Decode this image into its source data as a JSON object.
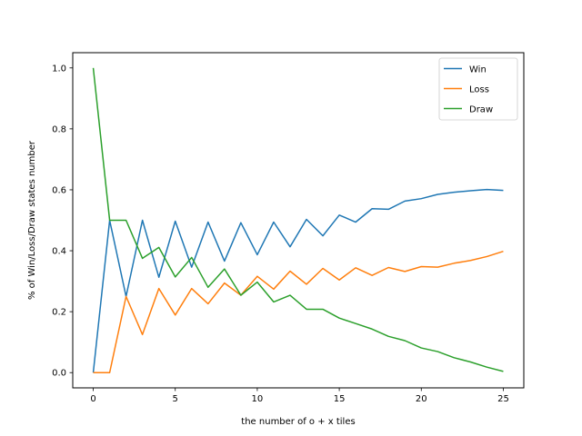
{
  "chart_data": {
    "type": "line",
    "title": "",
    "xlabel": "the number of o + x tiles",
    "ylabel": "% of Win/Loss/Draw states number",
    "xlim": [
      -1.25,
      26.25
    ],
    "ylim": [
      -0.05,
      1.05
    ],
    "xticks": [
      0,
      5,
      10,
      15,
      20,
      25
    ],
    "yticks": [
      0.0,
      0.2,
      0.4,
      0.6,
      0.8,
      1.0
    ],
    "legend_position": "top-right",
    "grid": false,
    "x": [
      0,
      1,
      2,
      3,
      4,
      5,
      6,
      7,
      8,
      9,
      10,
      11,
      12,
      13,
      14,
      15,
      16,
      17,
      18,
      19,
      20,
      21,
      22,
      23,
      24,
      25
    ],
    "series": [
      {
        "name": "Win",
        "color": "#1f77b4",
        "values": [
          0.0,
          0.5,
          0.25,
          0.5,
          0.313,
          0.497,
          0.346,
          0.494,
          0.366,
          0.492,
          0.387,
          0.494,
          0.413,
          0.503,
          0.449,
          0.517,
          0.494,
          0.538,
          0.536,
          0.563,
          0.571,
          0.585,
          0.592,
          0.597,
          0.601,
          0.598
        ]
      },
      {
        "name": "Loss",
        "color": "#ff7f0e",
        "values": [
          0.0,
          0.0,
          0.25,
          0.125,
          0.276,
          0.189,
          0.276,
          0.226,
          0.294,
          0.254,
          0.316,
          0.274,
          0.333,
          0.29,
          0.342,
          0.304,
          0.344,
          0.319,
          0.345,
          0.332,
          0.348,
          0.346,
          0.359,
          0.368,
          0.381,
          0.398
        ]
      },
      {
        "name": "Draw",
        "color": "#2ca02c",
        "values": [
          1.0,
          0.5,
          0.5,
          0.375,
          0.411,
          0.314,
          0.378,
          0.28,
          0.34,
          0.254,
          0.297,
          0.232,
          0.254,
          0.208,
          0.208,
          0.179,
          0.161,
          0.143,
          0.119,
          0.105,
          0.081,
          0.069,
          0.049,
          0.035,
          0.018,
          0.004
        ]
      }
    ]
  }
}
